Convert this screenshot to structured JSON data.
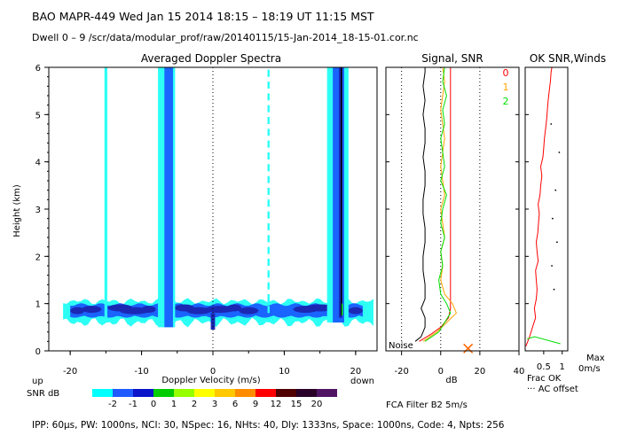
{
  "header": {
    "line1": "BAO  MAPR-449  Wed Jan 15 2014 18:15 – 18:19 UT 11:15 MST",
    "line2": "Dwell  0 –  9   /scr/data/modular_prof/raw/20140115/15-Jan-2014_18-15-01.cor.nc"
  },
  "footer": {
    "params": "IPP: 60μs, PW: 1000ns, NCI: 30, NSpec: 16, NHts: 40, Dly: 1333ns, Space: 1000ns, Code: 4, Npts: 256"
  },
  "colors": {
    "scale": [
      "#00ffff",
      "#1e5aff",
      "#0a14c8",
      "#00cd00",
      "#96ff00",
      "#ffff00",
      "#ffc800",
      "#ff8c00",
      "#ff0000",
      "#500000",
      "#280028",
      "#501464"
    ],
    "bg_light": "#2dfff5",
    "bg_mid": "#1a64ff",
    "bg_dark": "#1b28b4",
    "signal": "#000000",
    "snr0": "#ff0000",
    "snr1": "#ffa500",
    "snr2": "#00e000",
    "wind": "#ff0000",
    "frac": "#ff0000",
    "cross": "#ff6600"
  },
  "chart_data": [
    {
      "type": "heatmap",
      "title": "Averaged Doppler Spectra",
      "xlabel": "Doppler Velocity (m/s)",
      "ylabel": "Height (km)",
      "x_label_left": "up",
      "x_label_right": "down",
      "xlim": [
        -23,
        23
      ],
      "ylim": [
        0,
        6
      ],
      "xticks": [
        -20,
        -10,
        0,
        10,
        20
      ],
      "yticks": [
        0,
        1,
        2,
        3,
        4,
        5,
        6
      ],
      "colorbar_label": "SNR dB",
      "colorbar_ticks": [
        "-2",
        "-1",
        "0",
        "1",
        "2",
        "3",
        "6",
        "9",
        "12",
        "15",
        "20"
      ],
      "noise_layer_km": [
        0.6,
        1.05
      ],
      "vertical_stripes_ms": [
        {
          "center": -15,
          "width": 0.4,
          "level": "light",
          "ymin": 0.6,
          "ymax": 6.0
        },
        {
          "center": -6.5,
          "width": 2.4,
          "level": "light",
          "ymin": 0.5,
          "ymax": 6.0
        },
        {
          "center": -6.2,
          "width": 1.2,
          "level": "mid",
          "ymin": 0.5,
          "ymax": 6.0
        },
        {
          "center": 7.8,
          "width": 0.3,
          "level": "light",
          "ymin": 0.8,
          "ymax": 6.0,
          "dashed": true
        },
        {
          "center": 17.5,
          "width": 3.0,
          "level": "light",
          "ymin": 0.6,
          "ymax": 6.0
        },
        {
          "center": 17.6,
          "width": 1.6,
          "level": "mid",
          "ymin": 0.6,
          "ymax": 6.0
        },
        {
          "center": 17.9,
          "width": 0.5,
          "level": "dark",
          "ymin": 0.7,
          "ymax": 6.0
        }
      ],
      "peak_line_ms": 18.0
    },
    {
      "type": "line",
      "title": "Signal, SNR",
      "xlabel": "dB",
      "xlim": [
        -28,
        40
      ],
      "ylim": [
        0,
        6
      ],
      "xticks": [
        -20,
        0,
        20,
        40
      ],
      "dotted_x": [
        -20,
        0,
        20
      ],
      "legend": [
        "0",
        "1",
        "2"
      ],
      "annotation": "Noise",
      "footnote": "FCA Filter B2  5m/s",
      "series": [
        {
          "name": "Signal",
          "y": [
            0.2,
            0.3,
            0.5,
            0.7,
            0.9,
            1.1,
            1.4,
            1.7,
            2.0,
            2.3,
            2.6,
            2.9,
            3.2,
            3.5,
            3.8,
            4.1,
            4.4,
            4.7,
            5.0,
            5.3,
            5.6,
            5.9,
            6.0
          ],
          "x": [
            -13,
            -10,
            -8,
            -8,
            -10,
            -8,
            -8,
            -9,
            -9,
            -8,
            -8,
            -9,
            -9,
            -8,
            -8,
            -9,
            -8,
            -8,
            -9,
            -8,
            -9,
            -8,
            -8
          ]
        },
        {
          "name": "0",
          "y": [
            0.2,
            0.35,
            0.5,
            0.7,
            0.9,
            1.1,
            1.4,
            1.7,
            2.0,
            2.3,
            2.6,
            2.9,
            3.2,
            3.5,
            3.8,
            4.1,
            4.4,
            4.7,
            5.0,
            5.3,
            5.6,
            5.9,
            6.0
          ],
          "x": [
            -11,
            -5,
            0,
            4,
            5,
            5,
            5,
            5,
            5,
            5,
            5,
            5,
            5,
            5,
            5,
            5,
            5,
            5,
            5,
            5,
            5,
            5,
            5
          ]
        },
        {
          "name": "1",
          "y": [
            0.2,
            0.4,
            0.6,
            0.8,
            1.0,
            1.2,
            1.5,
            1.8,
            2.1,
            2.4,
            2.7,
            3.0,
            3.3,
            3.6,
            3.9,
            4.2,
            4.5,
            4.8,
            5.1,
            5.4,
            5.7,
            6.0
          ],
          "x": [
            -9,
            -2,
            3,
            8,
            6,
            2,
            0,
            1,
            0,
            2,
            1,
            0,
            2,
            1,
            0,
            1,
            2,
            1,
            0,
            1,
            2,
            1
          ]
        },
        {
          "name": "2",
          "y": [
            0.2,
            0.4,
            0.6,
            0.8,
            1.0,
            1.2,
            1.5,
            1.8,
            2.1,
            2.4,
            2.7,
            3.0,
            3.3,
            3.6,
            3.9,
            4.2,
            4.5,
            4.8,
            5.1,
            5.4,
            5.7,
            6.0
          ],
          "x": [
            -8,
            -1,
            2,
            5,
            3,
            0,
            -1,
            1,
            0,
            2,
            0,
            1,
            3,
            0,
            2,
            1,
            0,
            2,
            1,
            3,
            1,
            2
          ]
        }
      ],
      "marker": {
        "x": 14,
        "y": 0.05,
        "symbol": "x"
      }
    },
    {
      "type": "line",
      "title": "OK SNR,Winds",
      "xlabel": "Frac OK",
      "note": "··· AC offset",
      "right_top": "Max",
      "right_bottom": "0m/s",
      "xlim": [
        0,
        1.15
      ],
      "ylim": [
        0,
        6
      ],
      "xticks": [
        0.5,
        1
      ],
      "frac_ok": {
        "y": [
          0.1,
          0.3,
          0.5,
          0.7,
          0.9,
          1.1,
          1.3,
          1.5,
          1.7,
          1.9,
          2.1,
          2.3,
          2.5,
          2.7,
          2.9,
          3.1,
          3.3,
          3.5,
          3.7,
          3.9,
          4.1,
          4.3,
          4.5,
          4.7,
          4.9,
          5.1,
          5.3,
          5.5,
          5.7,
          5.9,
          6.0
        ],
        "x": [
          0.02,
          0.12,
          0.2,
          0.28,
          0.25,
          0.3,
          0.32,
          0.3,
          0.28,
          0.35,
          0.32,
          0.3,
          0.34,
          0.36,
          0.38,
          0.35,
          0.4,
          0.42,
          0.45,
          0.42,
          0.48,
          0.5,
          0.52,
          0.55,
          0.58,
          0.6,
          0.62,
          0.65,
          0.68,
          0.7,
          0.72
        ]
      },
      "green": {
        "x": [
          0.05,
          0.25,
          0.95
        ],
        "y": [
          0.25,
          0.3,
          0.15
        ]
      },
      "ac_offset_dots": {
        "x": [
          0.78,
          0.72,
          0.86,
          0.74,
          0.82,
          0.92,
          0.7
        ],
        "y": [
          1.3,
          1.8,
          2.3,
          2.8,
          3.4,
          4.2,
          4.8
        ]
      }
    }
  ]
}
